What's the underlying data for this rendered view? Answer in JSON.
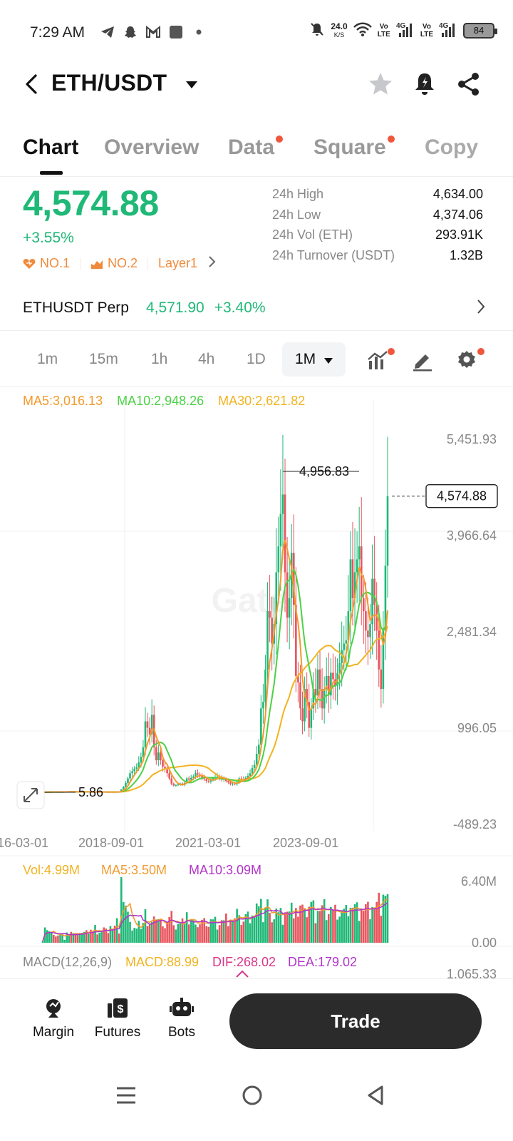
{
  "status_bar": {
    "time": "7:29 AM",
    "net_speed": "24.0",
    "net_speed_unit": "K/S",
    "sim1_label": "Vo\nLTE",
    "sim1_net": "4G",
    "sim2_label": "Vo\nLTE",
    "sim2_net": "4G",
    "battery": "84",
    "icons": [
      "telegram-icon",
      "snapchat-icon",
      "gmail-icon",
      "square-app-icon",
      "dot-icon",
      "mute-icon",
      "wifi-icon",
      "signal-icon",
      "battery-icon"
    ]
  },
  "header": {
    "title": "ETH/USDT",
    "icons": [
      "back-icon",
      "caret-down-icon",
      "star-icon",
      "alert-bell-icon",
      "share-icon"
    ]
  },
  "tabs": [
    {
      "label": "Chart",
      "active": true,
      "dot": false
    },
    {
      "label": "Overview",
      "active": false,
      "dot": false
    },
    {
      "label": "Data",
      "active": false,
      "dot": true
    },
    {
      "label": "Square",
      "active": false,
      "dot": true
    },
    {
      "label": "Copy",
      "active": false,
      "dot": false
    }
  ],
  "ticker": {
    "price": "4,574.88",
    "change": "+3.55%",
    "badges": [
      "NO.1",
      "NO.2",
      "Layer1"
    ],
    "stats": [
      {
        "label": "24h High",
        "value": "4,634.00"
      },
      {
        "label": "24h Low",
        "value": "4,374.06"
      },
      {
        "label": "24h Vol (ETH)",
        "value": "293.91K"
      },
      {
        "label": "24h Turnover (USDT)",
        "value": "1.32B"
      }
    ]
  },
  "perp": {
    "name": "ETHUSDT Perp",
    "price": "4,571.90",
    "change": "+3.40%"
  },
  "intervals": [
    {
      "label": "1m",
      "active": false
    },
    {
      "label": "15m",
      "active": false
    },
    {
      "label": "1h",
      "active": false
    },
    {
      "label": "4h",
      "active": false
    },
    {
      "label": "1D",
      "active": false
    },
    {
      "label": "1M",
      "active": true
    }
  ],
  "ma_legend": {
    "ma5": "MA5:3,016.13",
    "ma10": "MA10:2,948.26",
    "ma30": "MA30:2,621.82"
  },
  "chart_data": {
    "type": "candlestick",
    "y_axis_labels": [
      "5,451.93",
      "3,966.64",
      "2,481.34",
      "996.05",
      "-489.23"
    ],
    "y_axis_values": [
      5451.93,
      3966.64,
      2481.34,
      996.05,
      -489.23
    ],
    "x_axis_labels": [
      "16-03-01",
      "2018-09-01",
      "2021-03-01",
      "2023-09-01"
    ],
    "max_label": "4,956.83",
    "min_label": "5.86",
    "current_price_label": "4,574.88",
    "max_value": 4956.83,
    "min_value": 5.86,
    "current_value": 4574.88,
    "close_series": [
      6,
      8,
      10,
      12,
      14,
      12,
      11,
      10,
      11,
      12,
      12,
      14,
      15,
      13,
      14,
      12,
      11,
      12,
      13,
      14,
      11,
      12,
      10,
      9,
      11,
      10,
      11,
      12,
      10,
      9,
      8,
      10,
      11,
      9,
      12,
      11,
      50,
      90,
      150,
      220,
      300,
      330,
      370,
      390,
      470,
      550,
      700,
      1100,
      1000,
      900,
      1200,
      700,
      500,
      620,
      500,
      400,
      360,
      300,
      220,
      140,
      110,
      115,
      130,
      140,
      120,
      150,
      220,
      200,
      230,
      250,
      300,
      280,
      260,
      230,
      210,
      180,
      170,
      200,
      220,
      240,
      250,
      230,
      200,
      210,
      180,
      160,
      130,
      140,
      130,
      160,
      220,
      210,
      200,
      230,
      260,
      300,
      380,
      430,
      600,
      740,
      1300,
      1400,
      1900,
      2800,
      2700,
      2300,
      2600,
      3400,
      3800,
      4300,
      4600,
      3400,
      2700,
      3000,
      3700,
      2900,
      1800,
      1700,
      1300,
      1100,
      1600,
      1400,
      1000,
      1300,
      1600,
      1500,
      1900,
      1600,
      1300,
      1600,
      1800,
      1500,
      1850,
      1750,
      1650,
      1850,
      2000,
      2200,
      2300,
      2350,
      2800,
      3600,
      3000,
      3400,
      3600,
      3800,
      3000,
      2800,
      2500,
      2400,
      2600,
      3300,
      2900,
      2500,
      1900,
      1600,
      2500,
      3500,
      4574.88
    ],
    "ma5_value": 3016.13,
    "ma10_value": 2948.26,
    "ma30_value": 2621.82
  },
  "volume_panel": {
    "vol": "Vol:4.99M",
    "ma5": "MA5:3.50M",
    "ma10": "MA10:3.09M",
    "top_label": "6.40M",
    "bottom_label": "0.00"
  },
  "macd_panel": {
    "title": "MACD(12,26,9)",
    "macd": "MACD:88.99",
    "dif": "DIF:268.02",
    "dea": "DEA:179.02",
    "top_label": "1,065.33"
  },
  "bottom_bar": {
    "items": [
      {
        "label": "Margin",
        "icon": "margin-icon"
      },
      {
        "label": "Futures",
        "icon": "futures-icon"
      },
      {
        "label": "Bots",
        "icon": "bots-icon"
      }
    ],
    "trade_label": "Trade"
  },
  "nav_bar": {
    "icons": [
      "menu-icon",
      "home-icon",
      "back-nav-icon"
    ]
  },
  "colors": {
    "up": "#1fb877",
    "down": "#e8545d",
    "ma5": "#f39a2c",
    "ma10": "#4bd146",
    "ma30": "#f2b321",
    "purple": "#b236c9"
  }
}
